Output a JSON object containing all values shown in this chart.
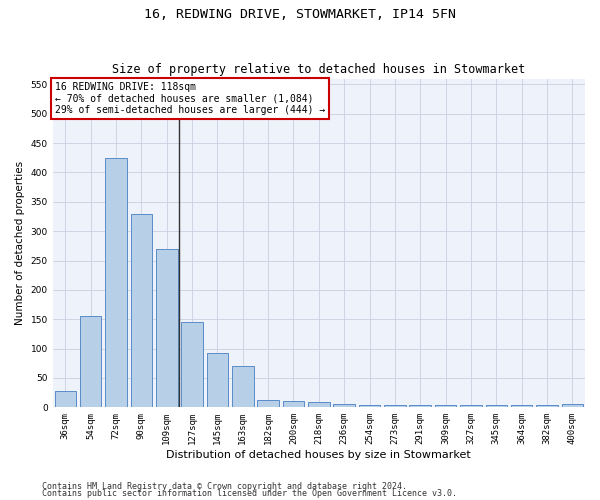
{
  "title": "16, REDWING DRIVE, STOWMARKET, IP14 5FN",
  "subtitle": "Size of property relative to detached houses in Stowmarket",
  "xlabel": "Distribution of detached houses by size in Stowmarket",
  "ylabel": "Number of detached properties",
  "categories": [
    "36sqm",
    "54sqm",
    "72sqm",
    "90sqm",
    "109sqm",
    "127sqm",
    "145sqm",
    "163sqm",
    "182sqm",
    "200sqm",
    "218sqm",
    "236sqm",
    "254sqm",
    "273sqm",
    "291sqm",
    "309sqm",
    "327sqm",
    "345sqm",
    "364sqm",
    "382sqm",
    "400sqm"
  ],
  "values": [
    28,
    155,
    425,
    330,
    270,
    145,
    92,
    70,
    13,
    10,
    9,
    5,
    4,
    4,
    4,
    4,
    4,
    4,
    4,
    4,
    5
  ],
  "bar_color": "#b8cfe8",
  "bar_edge_color": "#5b8cc8",
  "vline_x": 4.5,
  "annotation_text": "16 REDWING DRIVE: 118sqm\n← 70% of detached houses are smaller (1,084)\n29% of semi-detached houses are larger (444) →",
  "annotation_box_color": "#ffffff",
  "annotation_box_edge_color": "#cc0000",
  "ylim": [
    0,
    560
  ],
  "yticks": [
    0,
    50,
    100,
    150,
    200,
    250,
    300,
    350,
    400,
    450,
    500,
    550
  ],
  "footnote1": "Contains HM Land Registry data © Crown copyright and database right 2024.",
  "footnote2": "Contains public sector information licensed under the Open Government Licence v3.0.",
  "bg_color": "#eef2fa",
  "grid_color": "#c8d0e0",
  "title_fontsize": 9.5,
  "subtitle_fontsize": 8.5,
  "xlabel_fontsize": 8,
  "ylabel_fontsize": 7.5,
  "tick_fontsize": 6.5,
  "annotation_fontsize": 7,
  "footnote_fontsize": 6
}
